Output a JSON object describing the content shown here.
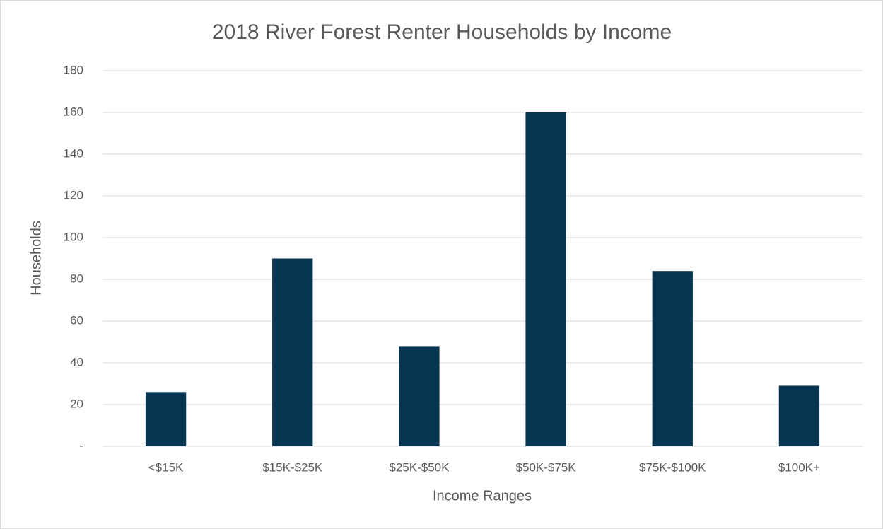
{
  "chart_data": {
    "type": "bar",
    "title": "2018 River Forest Renter Households by Income",
    "x_label": "Income Ranges",
    "y_label": "Households",
    "categories": [
      "<$15K",
      "$15K-$25K",
      "$25K-$50K",
      "$50K-$75K",
      "$75K-$100K",
      "$100K+"
    ],
    "values": [
      26,
      90,
      48,
      160,
      84,
      29
    ],
    "color": "#073551",
    "ylim": [
      0,
      180
    ],
    "yticks": [
      {
        "value": 0,
        "label": "-"
      },
      20,
      40,
      60,
      80,
      100,
      120,
      140,
      160,
      180
    ],
    "grid": true
  }
}
